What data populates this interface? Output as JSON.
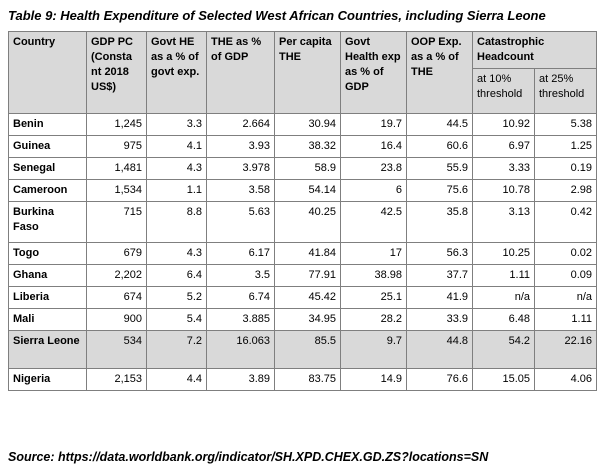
{
  "title": "Table 9: Health Expenditure of Selected West African Countries, including Sierra Leone",
  "source": "Source: https://data.worldbank.org/indicator/SH.XPD.CHEX.GD.ZS?locations=SN",
  "headers": {
    "country": "Country",
    "gdp_pc": "GDP PC (Consta nt 2018 US$)",
    "govt_he": "Govt HE as a % of govt exp.",
    "the_gdp": "THE as % of GDP",
    "per_capita": "Per capita THE",
    "govt_health_gdp": "Govt Health exp as % of GDP",
    "oop": "OOP Exp. as a % of THE",
    "catastrophic": "Catastrophic Headcount",
    "cat_10": "at 10% threshold",
    "cat_25": "at 25% threshold"
  },
  "rows": [
    {
      "country": "Benin",
      "gdp_pc": "1,245",
      "govt_he": "3.3",
      "the_gdp": "2.664",
      "per_capita": "30.94",
      "govt_health_gdp": "19.7",
      "oop": "44.5",
      "cat_10": "10.92",
      "cat_25": "5.38"
    },
    {
      "country": "Guinea",
      "gdp_pc": "975",
      "govt_he": "4.1",
      "the_gdp": "3.93",
      "per_capita": "38.32",
      "govt_health_gdp": "16.4",
      "oop": "60.6",
      "cat_10": "6.97",
      "cat_25": "1.25"
    },
    {
      "country": "Senegal",
      "gdp_pc": "1,481",
      "govt_he": "4.3",
      "the_gdp": "3.978",
      "per_capita": "58.9",
      "govt_health_gdp": "23.8",
      "oop": "55.9",
      "cat_10": "3.33",
      "cat_25": "0.19"
    },
    {
      "country": "Cameroon",
      "gdp_pc": "1,534",
      "govt_he": "1.1",
      "the_gdp": "3.58",
      "per_capita": "54.14",
      "govt_health_gdp": "6",
      "oop": "75.6",
      "cat_10": "10.78",
      "cat_25": "2.98"
    },
    {
      "country": "Burkina Faso",
      "gdp_pc": "715",
      "govt_he": "8.8",
      "the_gdp": "5.63",
      "per_capita": "40.25",
      "govt_health_gdp": "42.5",
      "oop": "35.8",
      "cat_10": "3.13",
      "cat_25": "0.42"
    },
    {
      "country": "Togo",
      "gdp_pc": "679",
      "govt_he": "4.3",
      "the_gdp": "6.17",
      "per_capita": "41.84",
      "govt_health_gdp": "17",
      "oop": "56.3",
      "cat_10": "10.25",
      "cat_25": "0.02"
    },
    {
      "country": "Ghana",
      "gdp_pc": "2,202",
      "govt_he": "6.4",
      "the_gdp": "3.5",
      "per_capita": "77.91",
      "govt_health_gdp": "38.98",
      "oop": "37.7",
      "cat_10": "1.11",
      "cat_25": "0.09"
    },
    {
      "country": "Liberia",
      "gdp_pc": "674",
      "govt_he": "5.2",
      "the_gdp": "6.74",
      "per_capita": "45.42",
      "govt_health_gdp": "25.1",
      "oop": "41.9",
      "cat_10": "n/a",
      "cat_25": "n/a"
    },
    {
      "country": "Mali",
      "gdp_pc": "900",
      "govt_he": "5.4",
      "the_gdp": "3.885",
      "per_capita": "34.95",
      "govt_health_gdp": "28.2",
      "oop": "33.9",
      "cat_10": "6.48",
      "cat_25": "1.11"
    },
    {
      "country": "Sierra Leone",
      "gdp_pc": "534",
      "govt_he": "7.2",
      "the_gdp": "16.063",
      "per_capita": "85.5",
      "govt_health_gdp": "9.7",
      "oop": "44.8",
      "cat_10": "54.2",
      "cat_25": "22.16"
    },
    {
      "country": "Nigeria",
      "gdp_pc": "2,153",
      "govt_he": "4.4",
      "the_gdp": "3.89",
      "per_capita": "83.75",
      "govt_health_gdp": "14.9",
      "oop": "76.6",
      "cat_10": "15.05",
      "cat_25": "4.06"
    }
  ]
}
